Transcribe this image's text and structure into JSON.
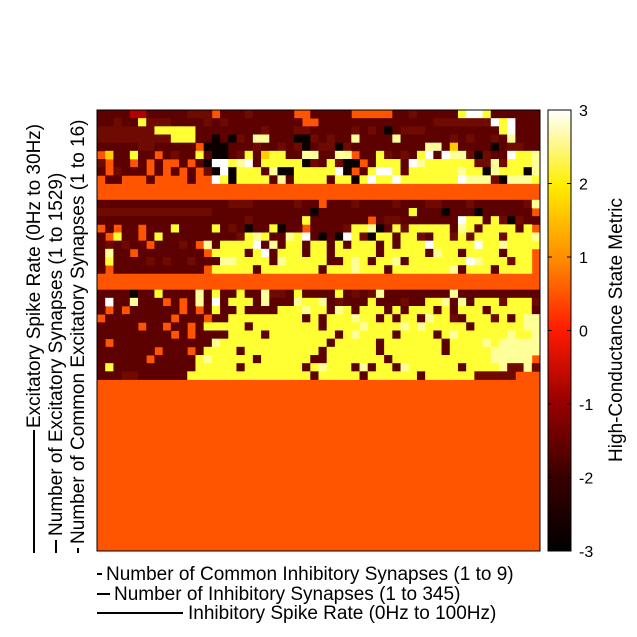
{
  "chart_data": {
    "type": "heatmap",
    "x_labels": [
      "Number of Common Inhibitory Synapses (1 to 9)",
      "Number of Inhibitory Synapses (1 to 345)",
      "Inhibitory Spike Rate (0Hz to 100Hz)"
    ],
    "y_labels": [
      "Excitatory Spike Rate (0Hz to 30Hz)",
      "Number of Excitatory Synapses (1 to 1529)",
      "Number of Common Excitatory Synapses (1 to 16)"
    ],
    "colorbar": {
      "label": "High-Conductance State Metric",
      "range": [
        -3,
        3
      ],
      "ticks": [
        "-3",
        "-2",
        "-1",
        "0",
        "1",
        "2",
        "3"
      ]
    },
    "colors": {
      "fill_value": "#ff5500",
      "dark_red": "#5c0000",
      "dark_red_alt": "#6e0a00",
      "black": "#0a0000",
      "red": "#b00000",
      "orange_yellow": "#ffcc00",
      "yellow": "#ffff33",
      "light_yellow": "#ffff99",
      "white": "#ffffff"
    },
    "grid_size": [
      54,
      54
    ],
    "grid": [
      "44443344444555744454444477444440777744544444B88B444444",
      "4454465554444545444444444774444444444444455555558B8444",
      "55555556666644444444544455444445454D4555444444444B8444",
      "55555555566644D4D54EE444DD54544E4444E4444445454454E444",
      "4444455444447AAA444544545D455D5444444444EE4F4444D45544",
      "7F446447454464AA45B4FBB44EE44EE744B5454B848EE5D5448BBE",
      "5744747477474D88BE84BBBBBD54B5AA74BBB48EBBBBBB55E5BBBE",
      "47544474747475A8ABBB4EAABBBBB8A74B88B4BBBBBBEBBDEBBBDE",
      "744777477774778BDBBBB4E4BBBB4BBAB8BB8BBBBBBB8EEE5DEEEB",
      "77777777777777777777777777777777777777777777777777777",
      "77777777777777777777777777777777777777777777777777777",
      "44444444444444445554444454474445444454445544454444445E",
      "55555555555555444444444444D44444444444B444D444D444444",
      "4444444444444444445444444B4444444745544444448BB4B5D544",
      "747447444B4444B454D44BD44744445BBEA4B5BBBBB4EB4BBBB4B",
      "47B4474B4444444445BEB44EB84D4D8B5ABB4BB54BB5B5BBB5BBBE",
      "4545447444547E4BBBB84E4BB4BB4B4BBB4B4BBB8BBBBB8BBEBBBB",
      "4E447444444447BBBB4B84BBB4BB4BBBBB4BBBBB4EBB4BBBB4BBB",
      "4B4444545445444EEBBBB4EBBBBB44BEB4BBE4BBBBBBB8EBBB5BB",
      "47444444444447BBBBB4BBBBBBB4BBBEBBB4BBBBBBBE4BBB4BBBB",
      "7777777777777777777777777777777777777777777777777777777",
      "7777777777777777777777777777777777777777777777777777777",
      "4444D44B4444E4B44B44E554B4444B4545E44444444E44444444445",
      "4844E4447474E484BBB4E444EBBE45444B444544BBE4E4BBB5BBB54",
      "47474444447474B44B4444BBBEBB4EB4BBB4B4BBB4B4BBB4BBBBB4",
      "7444444447444744BBBBBBBBB4B4BBBEBB4B4BB4EBB54BBB5B4BEE",
      "4444474474474BBBBB4BBBBBBBB4BBBBEBBBBEBEBBBBB4BBBBBBEEE",
      "4444444447474444BBBB4BBBBBBBB4BEBBBB4BBBB4BEBBBBBBEBBEE",
      "47444444444444EBBBBBBBBBBBBB4BBBBB4BBBBBBB4BBBBEBEEEEE",
      "4444444744474BBBB4BBBBBBBBB4BBBBBB4BBBBBBB4BBBBBEEEEEE",
      "444444744444BEBBBBB4BBBBBB44BBBBBBB4BBBBBBBBBBBBEEEEE",
      "4B4444444444BBBBB4BBBBBBB4BEBBB4E4BB4EBBBBBB4BBBBE55E555",
      "44455444444BBBBBBBBBBBBBBB4BBBBB4BBBBBB4BBBBBB55555777",
      "7777777777777777777777777777777777777777777777777777777",
      "7777777777777777777777777777777777777777777777777777777",
      "7777777777777777777777777777777777777777777777777777777",
      "7777777777777777777777777777777777777777777777777777777",
      "7777777777777777777777777777777777777777777777777777777",
      "7777777777777777777777777777777777777777777777777777777",
      "7777777777777777777777777777777777777777777777777777777",
      "7777777777777777777777777777777777777777777777777777777",
      "7777777777777777777777777777777777777777777777777777777",
      "7777777777777777777777777777777777777777777777777777777",
      "7777777777777777777777777777777777777777777777777777777",
      "7777777777777777777777777777777777777777777777777777777",
      "7777777777777777777777777777777777777777777777777777777",
      "7777777777777777777777777777777777777777777777777777777",
      "7777777777777777777777777777777777777777777777777777777",
      "7777777777777777777777777777777777777777777777777777777",
      "7777777777777777777777777777777777777777777777777777777",
      "7777777777777777777777777777777777777777777777777777777",
      "7777777777777777777777777777777777777777777777777777777",
      "7777777777777777777777777777777777777777777777777777777",
      "7777777777777777777777777777777777777777777777777777777"
    ],
    "grid_legend": {
      "4": "dark_red",
      "5": "dark_red_alt",
      "3": "red",
      "6": "yellow",
      "7": "fill_value",
      "8": "white",
      "A": "black",
      "B": "yellow",
      "D": "black",
      "E": "light_yellow",
      "F": "orange_yellow"
    }
  }
}
